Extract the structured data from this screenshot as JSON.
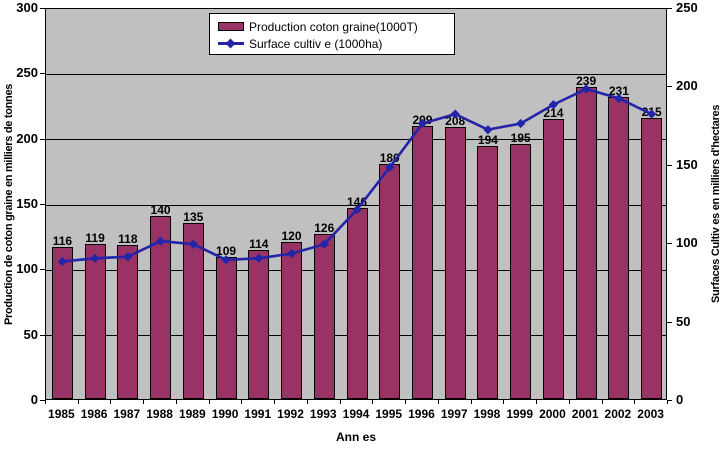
{
  "chart_data": {
    "type": "bar+line combo",
    "title": "",
    "grid": true,
    "legend_position": "top-center",
    "plot_background": "#c0c0c0",
    "gridline_color": "#000000",
    "categories": [
      "1985",
      "1986",
      "1987",
      "1988",
      "1989",
      "1990",
      "1991",
      "1992",
      "1993",
      "1994",
      "1995",
      "1996",
      "1997",
      "1998",
      "1999",
      "2000",
      "2001",
      "2002",
      "2003"
    ],
    "x_axis": {
      "title": "Ann es"
    },
    "left_axis": {
      "title": "Production de coton graine en milliers de tonnes",
      "min": 0,
      "max": 300,
      "step": 50,
      "ticks": [
        "0",
        "50",
        "100",
        "150",
        "200",
        "250",
        "300"
      ]
    },
    "right_axis": {
      "title": "Surfaces Cultiv es en milliers d'hectares",
      "min": 0,
      "max": 250,
      "step": 50,
      "ticks": [
        "0",
        "50",
        "100",
        "150",
        "200",
        "250"
      ]
    },
    "series": [
      {
        "name": "Production coton graine(1000T)",
        "type": "bar",
        "axis": "left",
        "color": "#993366",
        "data_labels": true,
        "values": [
          116,
          119,
          118,
          140,
          135,
          109,
          114,
          120,
          126,
          146,
          180,
          209,
          208,
          194,
          195,
          214,
          239,
          231,
          215
        ]
      },
      {
        "name": "Surface cultiv e (1000ha)",
        "type": "line",
        "axis": "right",
        "color": "#2424a8",
        "marker": "diamond",
        "data_labels": false,
        "values": [
          89,
          91,
          92,
          102,
          100,
          90,
          91,
          94,
          100,
          122,
          149,
          177,
          183,
          173,
          177,
          189,
          199,
          193,
          183
        ]
      }
    ]
  }
}
